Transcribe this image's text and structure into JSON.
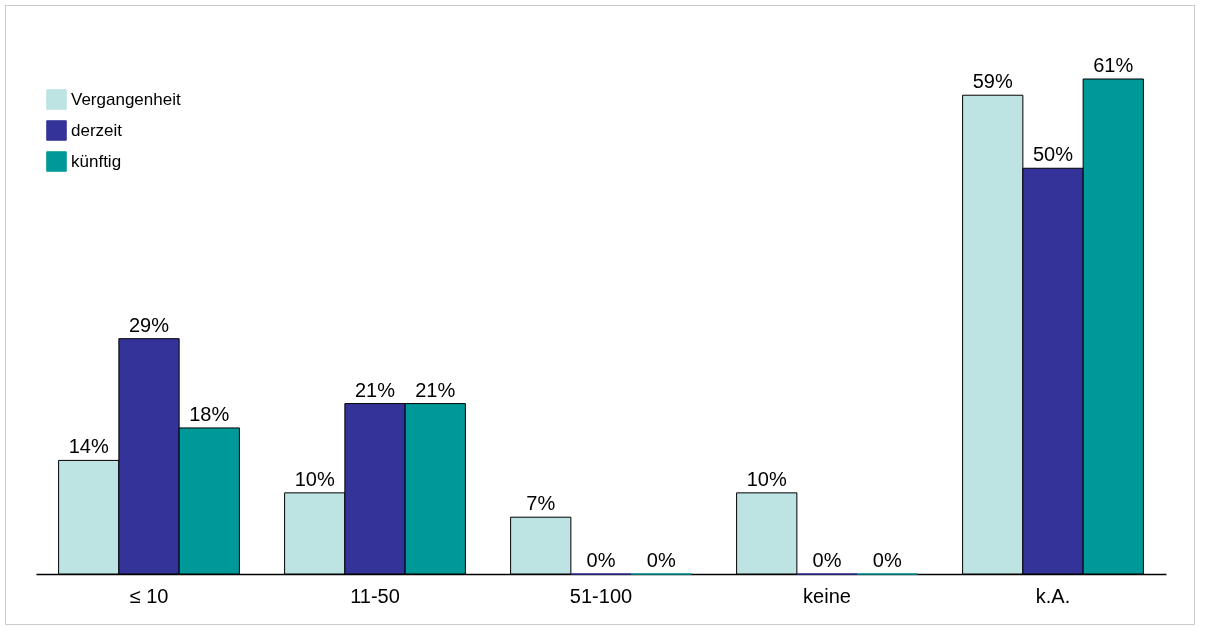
{
  "chart_data": {
    "type": "bar",
    "categories": [
      "≤ 10",
      "11-50",
      "51-100",
      "keine",
      "k.A."
    ],
    "series": [
      {
        "name": "Vergangenheit",
        "color": "#bde3e3",
        "values": [
          14,
          10,
          7,
          10,
          59
        ],
        "value_labels": [
          "14%",
          "10%",
          "7%",
          "10%",
          "59%"
        ]
      },
      {
        "name": "derzeit",
        "color": "#333399",
        "values": [
          29,
          21,
          0,
          0,
          50
        ],
        "value_labels": [
          "29%",
          "21%",
          "0%",
          "0%",
          "50%"
        ]
      },
      {
        "name": "künftig",
        "color": "#009999",
        "values": [
          18,
          21,
          0,
          0,
          61
        ],
        "value_labels": [
          "18%",
          "21%",
          "0%",
          "0%",
          "61%"
        ]
      }
    ],
    "legend": "top left",
    "grid": false
  }
}
